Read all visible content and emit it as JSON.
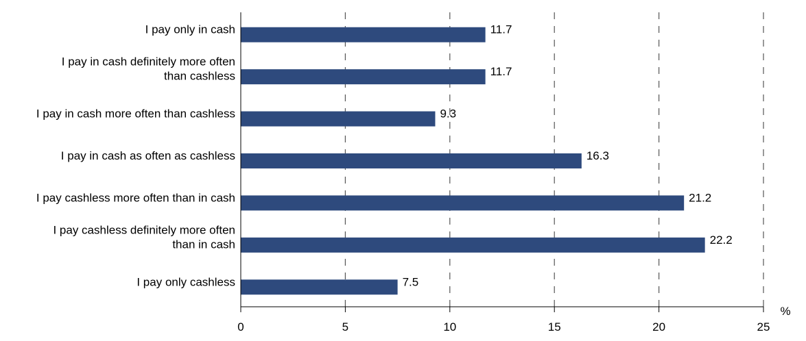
{
  "chart_data": {
    "type": "bar",
    "orientation": "horizontal",
    "categories": [
      [
        "I pay only in cash"
      ],
      [
        "I pay in cash definitely more often",
        "than cashless"
      ],
      [
        "I pay in cash more often than cashless"
      ],
      [
        "I pay in cash as often as cashless"
      ],
      [
        "I pay cashless more often than in cash"
      ],
      [
        "I pay cashless definitely more often",
        "than in cash"
      ],
      [
        "I pay only cashless"
      ]
    ],
    "values": [
      11.7,
      11.7,
      9.3,
      16.3,
      21.2,
      22.2,
      7.5
    ],
    "value_labels": [
      "11.7",
      "11.7",
      "9.3",
      "16.3",
      "21.2",
      "22.2",
      "7.5"
    ],
    "x_ticks": [
      0,
      5,
      10,
      15,
      20,
      25
    ],
    "x_tick_labels": [
      "0",
      "5",
      "10",
      "15",
      "20",
      "25"
    ],
    "xlim": [
      0,
      25
    ],
    "x_unit": "%",
    "grid": "vertical-dashed",
    "bar_color": "#2e4a7d"
  }
}
